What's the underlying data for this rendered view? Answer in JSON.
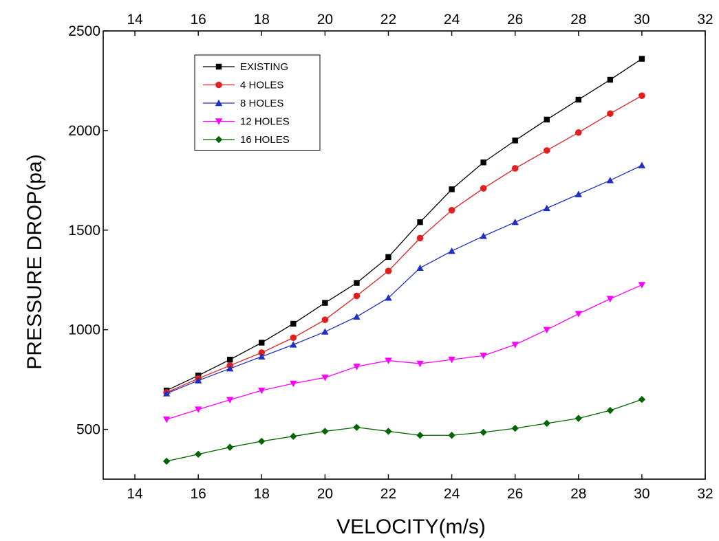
{
  "chart_data": {
    "type": "line",
    "title": "",
    "xlabel": "VELOCITY(m/s)",
    "ylabel": "PRESSURE DROP(pa)",
    "xlim": [
      13,
      32
    ],
    "ylim": [
      250,
      2500
    ],
    "x_ticks": [
      14,
      16,
      18,
      20,
      22,
      24,
      26,
      28,
      30,
      32
    ],
    "y_ticks": [
      500,
      1000,
      1500,
      2000,
      2500
    ],
    "top_axis_ticks": [
      14,
      16,
      18,
      20,
      22,
      24,
      26,
      28,
      30,
      32
    ],
    "grid": false,
    "legend_position": "top-left",
    "x": [
      15,
      16,
      17,
      18,
      19,
      20,
      21,
      22,
      23,
      24,
      25,
      26,
      27,
      28,
      29,
      30
    ],
    "series": [
      {
        "name": "EXISTING",
        "color": "#000000",
        "marker": "square",
        "values": [
          695,
          770,
          850,
          935,
          1030,
          1135,
          1235,
          1365,
          1540,
          1705,
          1840,
          1950,
          2055,
          2155,
          2255,
          2360
        ]
      },
      {
        "name": "4 HOLES",
        "color": "#e02020",
        "marker": "circle",
        "values": [
          685,
          755,
          820,
          885,
          960,
          1050,
          1170,
          1295,
          1460,
          1600,
          1710,
          1810,
          1900,
          1990,
          2085,
          2175
        ]
      },
      {
        "name": "8 HOLES",
        "color": "#2030c0",
        "marker": "triangle-up",
        "values": [
          680,
          745,
          805,
          865,
          925,
          990,
          1065,
          1160,
          1310,
          1395,
          1470,
          1540,
          1610,
          1680,
          1750,
          1825
        ]
      },
      {
        "name": "12 HOLES",
        "color": "#ff00ff",
        "marker": "triangle-down",
        "values": [
          550,
          600,
          648,
          695,
          730,
          760,
          815,
          845,
          830,
          850,
          870,
          925,
          1000,
          1080,
          1155,
          1225
        ]
      },
      {
        "name": "16 HOLES",
        "color": "#006400",
        "marker": "diamond",
        "values": [
          340,
          375,
          410,
          440,
          465,
          490,
          510,
          490,
          470,
          470,
          485,
          505,
          530,
          555,
          595,
          650
        ]
      }
    ]
  }
}
